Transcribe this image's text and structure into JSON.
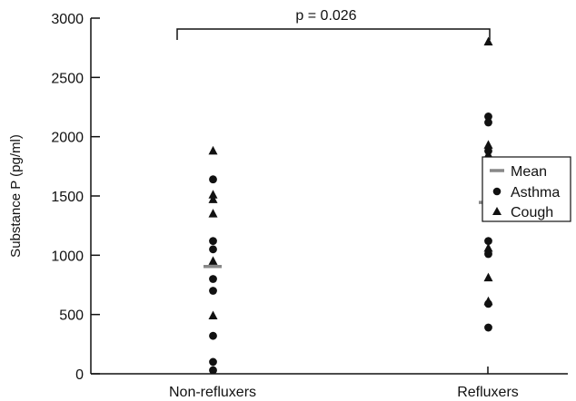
{
  "chart_data": {
    "type": "scatter",
    "title": "",
    "xlabel": "",
    "ylabel": "Substance P (pg/ml)",
    "ylim": [
      0,
      3000
    ],
    "yticks": [
      0,
      500,
      1000,
      1500,
      2000,
      2500,
      3000
    ],
    "categories": [
      "Non-refluxers",
      "Refluxers"
    ],
    "annotation": "p = 0.026",
    "legend": {
      "position": "right",
      "items": [
        {
          "label": "Mean",
          "marker": "dash"
        },
        {
          "label": "Asthma",
          "marker": "circle"
        },
        {
          "label": "Cough",
          "marker": "triangle"
        }
      ]
    },
    "series": [
      {
        "name": "Asthma",
        "marker": "circle",
        "points": [
          {
            "category": "Non-refluxers",
            "y": 1640
          },
          {
            "category": "Non-refluxers",
            "y": 1120
          },
          {
            "category": "Non-refluxers",
            "y": 1050
          },
          {
            "category": "Non-refluxers",
            "y": 800
          },
          {
            "category": "Non-refluxers",
            "y": 700
          },
          {
            "category": "Non-refluxers",
            "y": 320
          },
          {
            "category": "Non-refluxers",
            "y": 100
          },
          {
            "category": "Non-refluxers",
            "y": 30
          },
          {
            "category": "Refluxers",
            "y": 2170
          },
          {
            "category": "Refluxers",
            "y": 2120
          },
          {
            "category": "Refluxers",
            "y": 1880
          },
          {
            "category": "Refluxers",
            "y": 1400
          },
          {
            "category": "Refluxers",
            "y": 1120
          },
          {
            "category": "Refluxers",
            "y": 1010
          },
          {
            "category": "Refluxers",
            "y": 590
          },
          {
            "category": "Refluxers",
            "y": 390
          }
        ]
      },
      {
        "name": "Cough",
        "marker": "triangle",
        "points": [
          {
            "category": "Non-refluxers",
            "y": 1880
          },
          {
            "category": "Non-refluxers",
            "y": 1510
          },
          {
            "category": "Non-refluxers",
            "y": 1470
          },
          {
            "category": "Non-refluxers",
            "y": 1350
          },
          {
            "category": "Non-refluxers",
            "y": 950
          },
          {
            "category": "Non-refluxers",
            "y": 490
          },
          {
            "category": "Refluxers",
            "y": 2800
          },
          {
            "category": "Refluxers",
            "y": 1930
          },
          {
            "category": "Refluxers",
            "y": 1850
          },
          {
            "category": "Refluxers",
            "y": 1670
          },
          {
            "category": "Refluxers",
            "y": 1620
          },
          {
            "category": "Refluxers",
            "y": 1060
          },
          {
            "category": "Refluxers",
            "y": 810
          },
          {
            "category": "Refluxers",
            "y": 610
          }
        ]
      }
    ],
    "means": [
      {
        "category": "Non-refluxers",
        "y": 905
      },
      {
        "category": "Refluxers",
        "y": 1445
      }
    ],
    "colors": {
      "points": "#111111",
      "mean": "#888888",
      "axis": "#111111"
    }
  }
}
